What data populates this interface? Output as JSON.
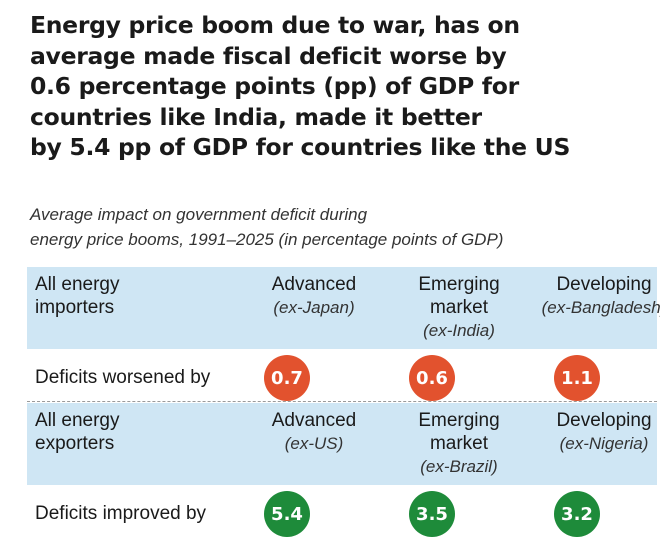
{
  "title_lines": [
    "Energy price boom due to war, has on",
    "average made fiscal deficit worse by",
    "0.6 percentage points (pp) of GDP for",
    "countries like India, made it better",
    "by 5.4 pp of GDP for countries like the US"
  ],
  "subtitle_lines": [
    "Average impact on government deficit during",
    "energy price booms, 1991–2025 (in percentage points of GDP)"
  ],
  "chart_data": {
    "type": "table",
    "title": "Energy price boom due to war, has on average made fiscal deficit worse by 0.6 percentage points (pp) of GDP for countries like India, made it better by 5.4 pp of GDP for countries like the US",
    "units": "percentage points of GDP",
    "groups": [
      {
        "header_lines": [
          "All energy",
          "importers"
        ],
        "columns": [
          {
            "lines": [
              "Advanced"
            ],
            "example": "(ex-Japan)"
          },
          {
            "lines": [
              "Emerging",
              "market"
            ],
            "example": "(ex-India)"
          },
          {
            "lines": [
              "Developing"
            ],
            "example": "(ex-Bangladesh)"
          }
        ],
        "row_label": "Deficits worsened by",
        "values": [
          0.7,
          0.6,
          1.1
        ],
        "value_labels": [
          "0.7",
          "0.6",
          "1.1"
        ],
        "color": "#e2522e"
      },
      {
        "header_lines": [
          "All energy",
          "exporters"
        ],
        "columns": [
          {
            "lines": [
              "Advanced"
            ],
            "example": "(ex-US)"
          },
          {
            "lines": [
              "Emerging",
              "market"
            ],
            "example": "(ex-Brazil)"
          },
          {
            "lines": [
              "Developing"
            ],
            "example": "(ex-Nigeria)"
          }
        ],
        "row_label": "Deficits improved by",
        "values": [
          5.4,
          3.5,
          3.2
        ],
        "value_labels": [
          "5.4",
          "3.5",
          "3.2"
        ],
        "color": "#1e8b3a"
      }
    ]
  }
}
